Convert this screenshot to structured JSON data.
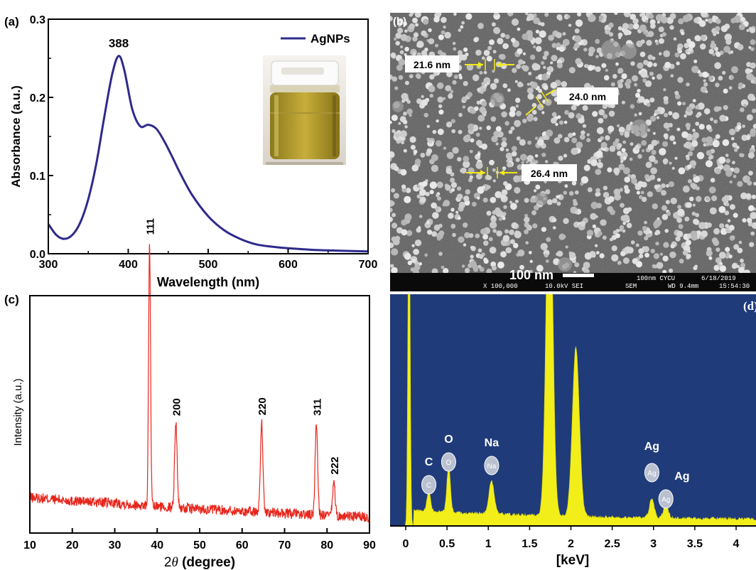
{
  "colors": {
    "uv_line": "#2e2a8c",
    "xrd_line": "#e8261c",
    "eds_bg": "#1f3b7a",
    "eds_fill": "#f2ee1a",
    "arrow": "#f2ea1a",
    "sem_bar": "#0a0a0a",
    "label_circle": "#b9c1d0"
  },
  "panels": {
    "a": {
      "label": "(a)"
    },
    "b": {
      "label": "(b)"
    },
    "c": {
      "label": "(c)"
    },
    "d": {
      "label": "(d)"
    }
  },
  "sem": {
    "measures": [
      "21.6 nm",
      "24.0 nm",
      "26.4 nm"
    ],
    "scalebar_label": "100 nm",
    "footer": {
      "magnification": "X 100,000",
      "voltage": "10.0kV SEI",
      "scale_text": "100nm CYCU",
      "mode": "SEM",
      "wd": "WD 9.4mm",
      "date": "6/18/2019",
      "time": "15:54:30"
    }
  },
  "chart_data": [
    {
      "panel": "a",
      "type": "line",
      "xlabel": "Wavelength (nm)",
      "ylabel": "Absorbance (a.u.)",
      "xlim": [
        300,
        700
      ],
      "ylim": [
        0,
        0.3
      ],
      "xticks": [
        "300",
        "400",
        "500",
        "600",
        "700"
      ],
      "yticks": [
        "0.0",
        "0.1",
        "0.2",
        "0.3"
      ],
      "legend": "top-right",
      "annotations": [
        {
          "text": "388",
          "x": 388
        }
      ],
      "series": [
        {
          "name": "AgNPs",
          "x": [
            300,
            310,
            320,
            330,
            340,
            350,
            360,
            370,
            380,
            388,
            395,
            405,
            415,
            425,
            435,
            445,
            455,
            465,
            480,
            500,
            520,
            540,
            560,
            580,
            600,
            630,
            660,
            700
          ],
          "y": [
            0.038,
            0.024,
            0.019,
            0.024,
            0.04,
            0.07,
            0.115,
            0.175,
            0.23,
            0.253,
            0.235,
            0.185,
            0.163,
            0.165,
            0.16,
            0.144,
            0.124,
            0.103,
            0.075,
            0.048,
            0.03,
            0.019,
            0.012,
            0.009,
            0.007,
            0.005,
            0.004,
            0.003
          ]
        }
      ]
    },
    {
      "panel": "c",
      "type": "line",
      "xlabel": "2θ (degree)",
      "xlabel_symbol": "θ",
      "xlabel_suffix": " (degree)",
      "ylabel": "Intensity (a.u.)",
      "xlim": [
        10,
        90
      ],
      "xticks": [
        "10",
        "20",
        "30",
        "40",
        "50",
        "60",
        "70",
        "80",
        "90"
      ],
      "baseline": [
        [
          10,
          0.3
        ],
        [
          20,
          0.27
        ],
        [
          30,
          0.25
        ],
        [
          40,
          0.22
        ],
        [
          50,
          0.2
        ],
        [
          60,
          0.18
        ],
        [
          70,
          0.16
        ],
        [
          80,
          0.14
        ],
        [
          90,
          0.13
        ]
      ],
      "peaks": [
        {
          "label": "111",
          "x": 38.2,
          "height": 1.0
        },
        {
          "label": "200",
          "x": 44.4,
          "height": 0.32
        },
        {
          "label": "220",
          "x": 64.6,
          "height": 0.34
        },
        {
          "label": "311",
          "x": 77.5,
          "height": 0.35
        },
        {
          "label": "222",
          "x": 81.6,
          "height": 0.13
        }
      ]
    },
    {
      "panel": "d",
      "type": "area",
      "xlabel": "[keV]",
      "xlim": [
        -0.1,
        4.3
      ],
      "xticks": [
        "0",
        "0.5",
        "1",
        "1.5",
        "2",
        "2.5",
        "3",
        "3.5",
        "4"
      ],
      "elements": [
        {
          "label": "C",
          "x": 0.28
        },
        {
          "label": "O",
          "x": 0.52
        },
        {
          "label": "Na",
          "x": 1.04
        },
        {
          "label": "Ag",
          "x": 2.98
        },
        {
          "label": "Ag",
          "x": 3.15
        }
      ],
      "series": [
        {
          "x": [
            0.04,
            0.28,
            0.52,
            1.04,
            1.74,
            2.06,
            2.98,
            3.15
          ],
          "y": [
            1.6,
            0.09,
            0.2,
            0.14,
            1.6,
            0.72,
            0.08,
            0.06
          ]
        }
      ]
    }
  ]
}
